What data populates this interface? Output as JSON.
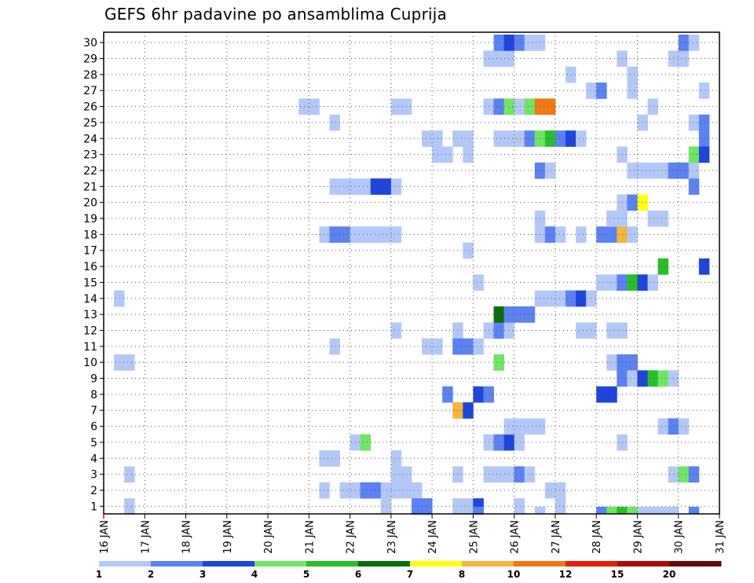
{
  "chart_data": {
    "type": "heatmap",
    "title": "GEFS 6hr padavine po ansamblima Cuprija",
    "x_ticks": [
      "16 JAN",
      "17 JAN",
      "18 JAN",
      "19 JAN",
      "20 JAN",
      "21 JAN",
      "22 JAN",
      "23 JAN",
      "24 JAN",
      "25 JAN",
      "26 JAN",
      "27 JAN",
      "28 JAN",
      "29 JAN",
      "30 JAN",
      "31 JAN"
    ],
    "y_ticks": [
      "1",
      "2",
      "3",
      "4",
      "5",
      "6",
      "7",
      "8",
      "9",
      "10",
      "11",
      "12",
      "13",
      "14",
      "15",
      "16",
      "17",
      "18",
      "19",
      "20",
      "21",
      "22",
      "23",
      "24",
      "25",
      "26",
      "27",
      "28",
      "29",
      "30"
    ],
    "x_unit": "day offset from 16 JAN 00Z (6-hour steps)",
    "y_unit": "ensemble member",
    "grid": true,
    "legend": {
      "position": "bottom",
      "labels": [
        "1",
        "2",
        "3",
        "4",
        "5",
        "6",
        "7",
        "8",
        "10",
        "12",
        "15",
        "20"
      ],
      "colors": [
        "#b4c8f8",
        "#5a82f0",
        "#1e46dc",
        "#6ee664",
        "#28be28",
        "#0a6e0a",
        "#ffff14",
        "#f5b43c",
        "#f07814",
        "#e61e0a",
        "#aa0a0a",
        "#640a0a"
      ]
    },
    "cells": [
      [
        0.25,
        14,
        1
      ],
      [
        0.25,
        10,
        1
      ],
      [
        0.5,
        10,
        1
      ],
      [
        0.5,
        3,
        1
      ],
      [
        0.5,
        1,
        1
      ],
      [
        4.75,
        26,
        1
      ],
      [
        5.0,
        26,
        1
      ],
      [
        5.25,
        18,
        1
      ],
      [
        5.25,
        4,
        1
      ],
      [
        5.25,
        2,
        1
      ],
      [
        5.5,
        4,
        1
      ],
      [
        5.5,
        25,
        1
      ],
      [
        5.5,
        21,
        1
      ],
      [
        5.75,
        21,
        1
      ],
      [
        6.0,
        21,
        1
      ],
      [
        6.25,
        21,
        1
      ],
      [
        6.5,
        21,
        3
      ],
      [
        6.75,
        21,
        3
      ],
      [
        7.0,
        21,
        1
      ],
      [
        5.5,
        18,
        2
      ],
      [
        5.75,
        18,
        2
      ],
      [
        6.0,
        18,
        1
      ],
      [
        6.25,
        18,
        1
      ],
      [
        6.5,
        18,
        1
      ],
      [
        6.75,
        18,
        1
      ],
      [
        7.0,
        18,
        1
      ],
      [
        5.5,
        11,
        1
      ],
      [
        5.75,
        2,
        1
      ],
      [
        6.0,
        2,
        1
      ],
      [
        6.25,
        2,
        2
      ],
      [
        6.5,
        2,
        2
      ],
      [
        6.75,
        2,
        1
      ],
      [
        7.0,
        2,
        1
      ],
      [
        7.25,
        2,
        1
      ],
      [
        7.5,
        2,
        1
      ],
      [
        6.0,
        5,
        1
      ],
      [
        6.25,
        5,
        4
      ],
      [
        6.75,
        1,
        1
      ],
      [
        7.5,
        1,
        2
      ],
      [
        7.75,
        1,
        2
      ],
      [
        7.0,
        26,
        1
      ],
      [
        7.25,
        26,
        1
      ],
      [
        7.0,
        4,
        1
      ],
      [
        7.0,
        3,
        1
      ],
      [
        7.25,
        3,
        1
      ],
      [
        7.0,
        12,
        1
      ],
      [
        7.75,
        24,
        1
      ],
      [
        8.0,
        24,
        1
      ],
      [
        8.0,
        23,
        1
      ],
      [
        8.25,
        23,
        1
      ],
      [
        7.75,
        11,
        1
      ],
      [
        8.0,
        11,
        1
      ],
      [
        8.5,
        24,
        1
      ],
      [
        8.75,
        24,
        1
      ],
      [
        8.75,
        23,
        1
      ],
      [
        8.5,
        3,
        1
      ],
      [
        8.5,
        1,
        1
      ],
      [
        8.75,
        1,
        1
      ],
      [
        8.25,
        8,
        2
      ],
      [
        8.5,
        7,
        8
      ],
      [
        8.75,
        7,
        3
      ],
      [
        8.75,
        17,
        1
      ],
      [
        9.0,
        15,
        1
      ],
      [
        8.5,
        12,
        1
      ],
      [
        8.5,
        11,
        2
      ],
      [
        8.75,
        11,
        2
      ],
      [
        9.0,
        11,
        1
      ],
      [
        9.0,
        8,
        3
      ],
      [
        9.25,
        8,
        2
      ],
      [
        9.25,
        3,
        1
      ],
      [
        9.5,
        3,
        1
      ],
      [
        9.75,
        3,
        1
      ],
      [
        10.0,
        3,
        2
      ],
      [
        10.25,
        3,
        1
      ],
      [
        9.0,
        1,
        3
      ],
      [
        9.25,
        29,
        1
      ],
      [
        9.5,
        29,
        1
      ],
      [
        9.75,
        29,
        1
      ],
      [
        9.5,
        30,
        2
      ],
      [
        9.75,
        30,
        3
      ],
      [
        10.0,
        30,
        2
      ],
      [
        10.25,
        30,
        1
      ],
      [
        10.5,
        30,
        1
      ],
      [
        9.25,
        26,
        1
      ],
      [
        9.5,
        26,
        2
      ],
      [
        9.75,
        26,
        4
      ],
      [
        10.0,
        26,
        1
      ],
      [
        10.25,
        26,
        4
      ],
      [
        10.5,
        26,
        9
      ],
      [
        10.75,
        26,
        9
      ],
      [
        9.5,
        24,
        1
      ],
      [
        9.75,
        24,
        1
      ],
      [
        10.0,
        24,
        1
      ],
      [
        10.25,
        24,
        2
      ],
      [
        10.5,
        24,
        4
      ],
      [
        10.75,
        24,
        5
      ],
      [
        11.0,
        24,
        2
      ],
      [
        11.25,
        24,
        3
      ],
      [
        11.5,
        24,
        1
      ],
      [
        9.25,
        12,
        1
      ],
      [
        9.5,
        12,
        2
      ],
      [
        9.75,
        12,
        1
      ],
      [
        9.5,
        13,
        6
      ],
      [
        9.75,
        13,
        2
      ],
      [
        10.0,
        13,
        2
      ],
      [
        10.25,
        13,
        2
      ],
      [
        9.5,
        10,
        4
      ],
      [
        9.25,
        5,
        1
      ],
      [
        9.5,
        5,
        2
      ],
      [
        9.75,
        5,
        3
      ],
      [
        10.0,
        5,
        1
      ],
      [
        9.75,
        6,
        1
      ],
      [
        10.0,
        6,
        1
      ],
      [
        10.25,
        6,
        1
      ],
      [
        10.5,
        6,
        1
      ],
      [
        10.0,
        1,
        1
      ],
      [
        10.5,
        22,
        2
      ],
      [
        10.75,
        22,
        1
      ],
      [
        10.5,
        19,
        1
      ],
      [
        10.5,
        18,
        1
      ],
      [
        10.75,
        18,
        2
      ],
      [
        11.0,
        18,
        1
      ],
      [
        10.5,
        14,
        1
      ],
      [
        10.75,
        14,
        1
      ],
      [
        11.0,
        14,
        1
      ],
      [
        11.25,
        14,
        2
      ],
      [
        11.5,
        14,
        3
      ],
      [
        11.75,
        14,
        1
      ],
      [
        11.25,
        28,
        1
      ],
      [
        11.75,
        27,
        1
      ],
      [
        12.0,
        27,
        2
      ],
      [
        11.5,
        18,
        1
      ],
      [
        10.75,
        2,
        1
      ],
      [
        11.0,
        2,
        1
      ],
      [
        11.0,
        1,
        1
      ],
      [
        11.5,
        12,
        1
      ],
      [
        11.75,
        12,
        1
      ],
      [
        12.0,
        15,
        1
      ],
      [
        12.25,
        15,
        1
      ],
      [
        12.5,
        15,
        2
      ],
      [
        12.75,
        15,
        5
      ],
      [
        13.0,
        15,
        3
      ],
      [
        13.25,
        15,
        1
      ],
      [
        12.0,
        18,
        2
      ],
      [
        12.25,
        18,
        2
      ],
      [
        12.5,
        18,
        8
      ],
      [
        12.75,
        18,
        1
      ],
      [
        12.25,
        19,
        1
      ],
      [
        12.5,
        19,
        1
      ],
      [
        12.5,
        20,
        1
      ],
      [
        12.75,
        20,
        2
      ],
      [
        13.0,
        20,
        7
      ],
      [
        12.25,
        12,
        1
      ],
      [
        12.5,
        12,
        1
      ],
      [
        12.25,
        10,
        1
      ],
      [
        12.5,
        10,
        2
      ],
      [
        12.75,
        10,
        2
      ],
      [
        12.5,
        9,
        2
      ],
      [
        12.75,
        9,
        1
      ],
      [
        12.0,
        8,
        3
      ],
      [
        12.25,
        8,
        3
      ],
      [
        12.5,
        5,
        1
      ],
      [
        12.5,
        29,
        1
      ],
      [
        12.75,
        28,
        1
      ],
      [
        12.75,
        27,
        1
      ],
      [
        12.5,
        23,
        1
      ],
      [
        12.75,
        22,
        1
      ],
      [
        13.0,
        22,
        1
      ],
      [
        13.25,
        22,
        1
      ],
      [
        13.5,
        22,
        1
      ],
      [
        13.75,
        22,
        2
      ],
      [
        14.0,
        22,
        2
      ],
      [
        14.25,
        22,
        1
      ],
      [
        13.0,
        25,
        1
      ],
      [
        13.25,
        19,
        1
      ],
      [
        13.5,
        19,
        1
      ],
      [
        13.25,
        26,
        1
      ],
      [
        13.75,
        29,
        1
      ],
      [
        14.0,
        29,
        1
      ],
      [
        14.0,
        30,
        2
      ],
      [
        14.25,
        30,
        1
      ],
      [
        13.5,
        16,
        5
      ],
      [
        13.0,
        9,
        3
      ],
      [
        13.25,
        9,
        5
      ],
      [
        13.5,
        9,
        4
      ],
      [
        13.75,
        9,
        1
      ],
      [
        13.5,
        6,
        1
      ],
      [
        13.75,
        6,
        2
      ],
      [
        14.0,
        6,
        1
      ],
      [
        13.75,
        3,
        1
      ],
      [
        14.0,
        3,
        4
      ],
      [
        14.25,
        3,
        2
      ],
      [
        14.25,
        25,
        1
      ],
      [
        14.5,
        25,
        2
      ],
      [
        14.5,
        24,
        2
      ],
      [
        14.25,
        23,
        4
      ],
      [
        14.5,
        23,
        3
      ],
      [
        14.25,
        21,
        2
      ],
      [
        14.5,
        27,
        1
      ],
      [
        14.5,
        16,
        3
      ]
    ],
    "bottom_strip": [
      [
        9.0,
        2
      ],
      [
        10.5,
        1
      ],
      [
        12.0,
        2
      ],
      [
        12.25,
        4
      ],
      [
        12.5,
        5
      ],
      [
        12.75,
        4
      ],
      [
        13.0,
        1
      ],
      [
        13.25,
        1
      ],
      [
        13.5,
        1
      ],
      [
        13.75,
        1
      ],
      [
        14.25,
        2
      ]
    ]
  }
}
